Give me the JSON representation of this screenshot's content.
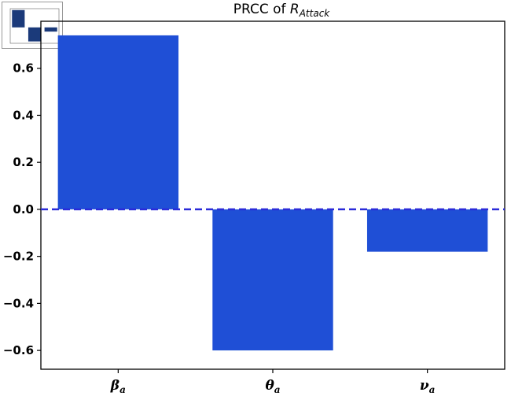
{
  "chart_data": {
    "type": "bar",
    "title": "PRCC of ",
    "title_var": "R",
    "title_sub": "Attack",
    "categories": [
      {
        "symbol": "β",
        "sub": "a"
      },
      {
        "symbol": "θ",
        "sub": "a"
      },
      {
        "symbol": "ν",
        "sub": "a"
      }
    ],
    "values": [
      0.74,
      -0.6,
      -0.18
    ],
    "ylim": [
      -0.68,
      0.8
    ],
    "yticks": [
      -0.6,
      -0.4,
      -0.2,
      0.0,
      0.2,
      0.4,
      0.6
    ],
    "ytick_labels": [
      "−0.6",
      "−0.4",
      "−0.2",
      "0.0",
      "0.2",
      "0.4",
      "0.6"
    ],
    "zero_line": "dashed",
    "bar_color": "#1f4fd6",
    "zero_line_color": "#2b2bd9",
    "grid": false
  },
  "thumbnail": {
    "bar_color": "#1b3a7a"
  }
}
